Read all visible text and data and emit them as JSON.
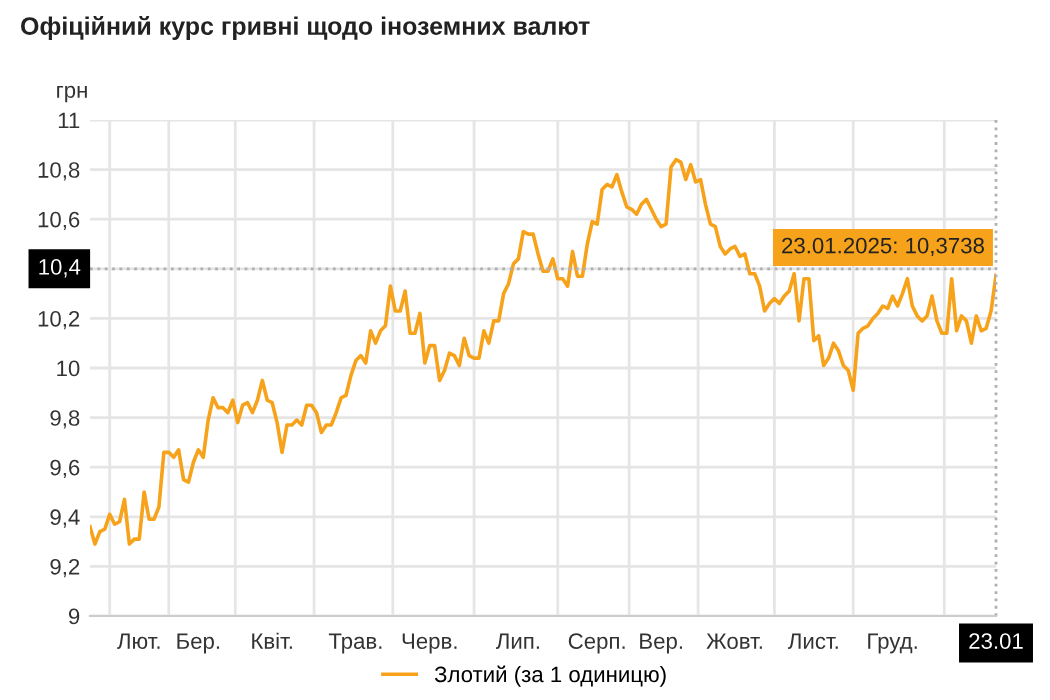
{
  "chart_data": {
    "type": "line",
    "title": "Офіційний курс гривні щодо іноземних валют",
    "ylabel": "грн",
    "categories": [
      null,
      null,
      null,
      null,
      null,
      null,
      null,
      null,
      null,
      null,
      "Лют.",
      null,
      null,
      null,
      null,
      null,
      null,
      null,
      null,
      null,
      null,
      null,
      "Бер.",
      null,
      null,
      null,
      null,
      null,
      null,
      null,
      null,
      null,
      null,
      null,
      null,
      null,
      null,
      "Квіт.",
      null,
      null,
      null,
      null,
      null,
      null,
      null,
      null,
      null,
      null,
      null,
      null,
      null,
      null,
      null,
      null,
      "Трав.",
      null,
      null,
      null,
      null,
      null,
      null,
      null,
      null,
      null,
      null,
      null,
      null,
      null,
      null,
      "Черв.",
      null,
      null,
      null,
      null,
      null,
      null,
      null,
      null,
      null,
      null,
      null,
      null,
      null,
      null,
      null,
      null,
      null,
      "Лип.",
      null,
      null,
      null,
      null,
      null,
      null,
      null,
      null,
      null,
      null,
      null,
      null,
      null,
      null,
      null,
      "Серп.",
      null,
      null,
      null,
      null,
      null,
      null,
      null,
      null,
      null,
      null,
      null,
      null,
      "Вер.",
      null,
      null,
      null,
      null,
      null,
      null,
      null,
      null,
      null,
      null,
      null,
      null,
      null,
      null,
      "Жовт.",
      null,
      null,
      null,
      null,
      null,
      null,
      null,
      null,
      null,
      null,
      null,
      null,
      null,
      null,
      null,
      "Лист.",
      null,
      null,
      null,
      null,
      null,
      null,
      null,
      null,
      null,
      null,
      null,
      null,
      null,
      null,
      null,
      "Груд.",
      null,
      null,
      null,
      null,
      null,
      null,
      null,
      null,
      null,
      null,
      null,
      null,
      null,
      null,
      null,
      null,
      null,
      null,
      null,
      null,
      "23.01"
    ],
    "series": [
      {
        "name": "Злотий (за 1 одиницю)",
        "color": "#f7a21b",
        "values": [
          9.36,
          9.29,
          9.34,
          9.35,
          9.41,
          9.37,
          9.38,
          9.47,
          9.29,
          9.31,
          9.31,
          9.5,
          9.39,
          9.39,
          9.44,
          9.66,
          9.66,
          9.64,
          9.67,
          9.55,
          9.54,
          9.62,
          9.67,
          9.64,
          9.79,
          9.88,
          9.84,
          9.84,
          9.82,
          9.87,
          9.78,
          9.85,
          9.86,
          9.82,
          9.87,
          9.95,
          9.87,
          9.86,
          9.78,
          9.66,
          9.77,
          9.77,
          9.79,
          9.77,
          9.85,
          9.85,
          9.82,
          9.74,
          9.77,
          9.77,
          9.82,
          9.88,
          9.89,
          9.97,
          10.03,
          10.05,
          10.02,
          10.15,
          10.1,
          10.15,
          10.17,
          10.33,
          10.23,
          10.23,
          10.31,
          10.14,
          10.14,
          10.22,
          10.02,
          10.09,
          10.09,
          9.95,
          9.99,
          10.06,
          10.05,
          10.01,
          10.12,
          10.05,
          10.04,
          10.04,
          10.15,
          10.1,
          10.19,
          10.19,
          10.3,
          10.34,
          10.42,
          10.44,
          10.55,
          10.54,
          10.54,
          10.46,
          10.39,
          10.39,
          10.44,
          10.36,
          10.36,
          10.33,
          10.47,
          10.37,
          10.37,
          10.5,
          10.59,
          10.58,
          10.72,
          10.74,
          10.73,
          10.78,
          10.71,
          10.65,
          10.64,
          10.62,
          10.66,
          10.68,
          10.64,
          10.6,
          10.57,
          10.58,
          10.81,
          10.84,
          10.83,
          10.76,
          10.82,
          10.75,
          10.76,
          10.66,
          10.58,
          10.57,
          10.49,
          10.46,
          10.48,
          10.49,
          10.45,
          10.46,
          10.38,
          10.38,
          10.33,
          10.23,
          10.26,
          10.28,
          10.26,
          10.29,
          10.31,
          10.38,
          10.19,
          10.36,
          10.36,
          10.11,
          10.13,
          10.01,
          10.04,
          10.1,
          10.07,
          10.01,
          9.99,
          9.91,
          10.14,
          10.16,
          10.17,
          10.2,
          10.22,
          10.25,
          10.24,
          10.29,
          10.25,
          10.3,
          10.36,
          10.25,
          10.21,
          10.19,
          10.21,
          10.29,
          10.19,
          10.14,
          10.14,
          10.36,
          10.15,
          10.21,
          10.19,
          10.1,
          10.21,
          10.15,
          10.16,
          10.23,
          10.3738
        ]
      }
    ],
    "ylim": [
      9,
      11
    ],
    "yticks": [
      9,
      {
        "value": 9.2,
        "label": "9,2"
      },
      {
        "value": 9.4,
        "label": "9,4"
      },
      {
        "value": 9.6,
        "label": "9,6"
      },
      {
        "value": 9.8,
        "label": "9,8"
      },
      10,
      {
        "value": 10.2,
        "label": "10,2"
      },
      {
        "value": 10.4,
        "label": "10,4"
      },
      {
        "value": 10.6,
        "label": "10,6"
      },
      {
        "value": 10.8,
        "label": "10,8"
      },
      11
    ],
    "ref_lines": [
      {
        "axis": "y",
        "value": 10.4,
        "label": "10,4",
        "line_style": "dotted",
        "color": "#b0b0b0"
      },
      {
        "axis": "x",
        "value": "23.01",
        "line_style": "dotted",
        "color": "#b0b0b0"
      }
    ],
    "annotations": [
      {
        "text": "23.01.2025: 10,3738",
        "x": "23.01",
        "y": 10.3738
      }
    ],
    "grid": true,
    "legend": "bottom",
    "marker": "none",
    "line_style": "solid"
  }
}
